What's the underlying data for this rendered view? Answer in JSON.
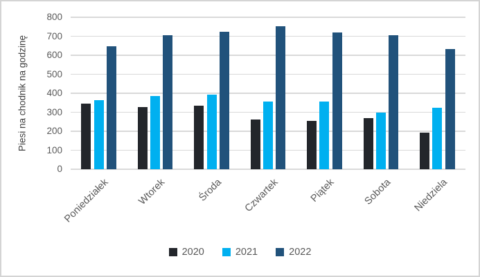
{
  "chart_data": {
    "type": "bar",
    "title": "",
    "xlabel": "",
    "ylabel": "Piesi na chodnik na godzinę",
    "categories": [
      "Poniedziałek",
      "Wtorek",
      "Środa",
      "Czwartek",
      "Piątek",
      "Sobota",
      "Niedziela"
    ],
    "series": [
      {
        "name": "2020",
        "color": "#23262B",
        "values": [
          345,
          327,
          334,
          263,
          256,
          270,
          194
        ]
      },
      {
        "name": "2021",
        "color": "#00B0F0",
        "values": [
          363,
          385,
          392,
          356,
          355,
          297,
          322
        ]
      },
      {
        "name": "2022",
        "color": "#21527B",
        "values": [
          648,
          706,
          724,
          754,
          719,
          705,
          631
        ]
      }
    ],
    "ylim": [
      0,
      800
    ],
    "yticks": [
      0,
      100,
      200,
      300,
      400,
      500,
      600,
      700,
      800
    ],
    "grid": true,
    "legend_position": "bottom"
  },
  "colors": {
    "axis_text": "#595959",
    "gridline": "#D9D9D9",
    "frame_border": "#D4D4D4",
    "background": "#FFFFFF"
  }
}
